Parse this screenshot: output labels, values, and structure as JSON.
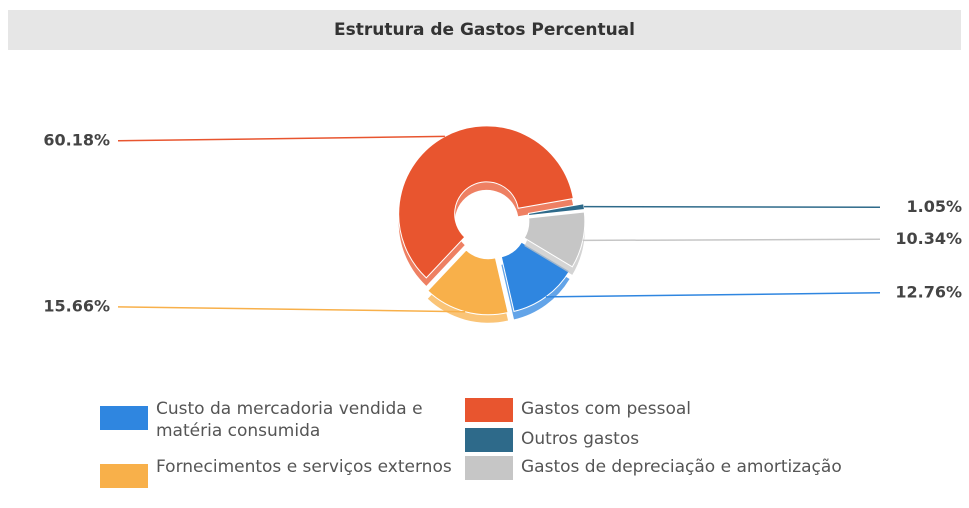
{
  "chart_data": {
    "type": "donut",
    "title": "Estrutura de Gastos Percentual",
    "categories": [
      "Custo da mercadoria vendida e matéria consumida",
      "Fornecimentos e serviços externos",
      "Gastos com pessoal",
      "Outros gastos",
      "Gastos de depreciação e amortização"
    ],
    "values": [
      12.76,
      15.66,
      60.18,
      1.05,
      10.34
    ],
    "value_labels": [
      "12.76%",
      "15.66%",
      "60.18%",
      "1.05%",
      "10.34%"
    ],
    "colors": [
      "#2f86e0",
      "#f8b04a",
      "#e8552f",
      "#2e6a8a",
      "#c6c6c6"
    ]
  }
}
